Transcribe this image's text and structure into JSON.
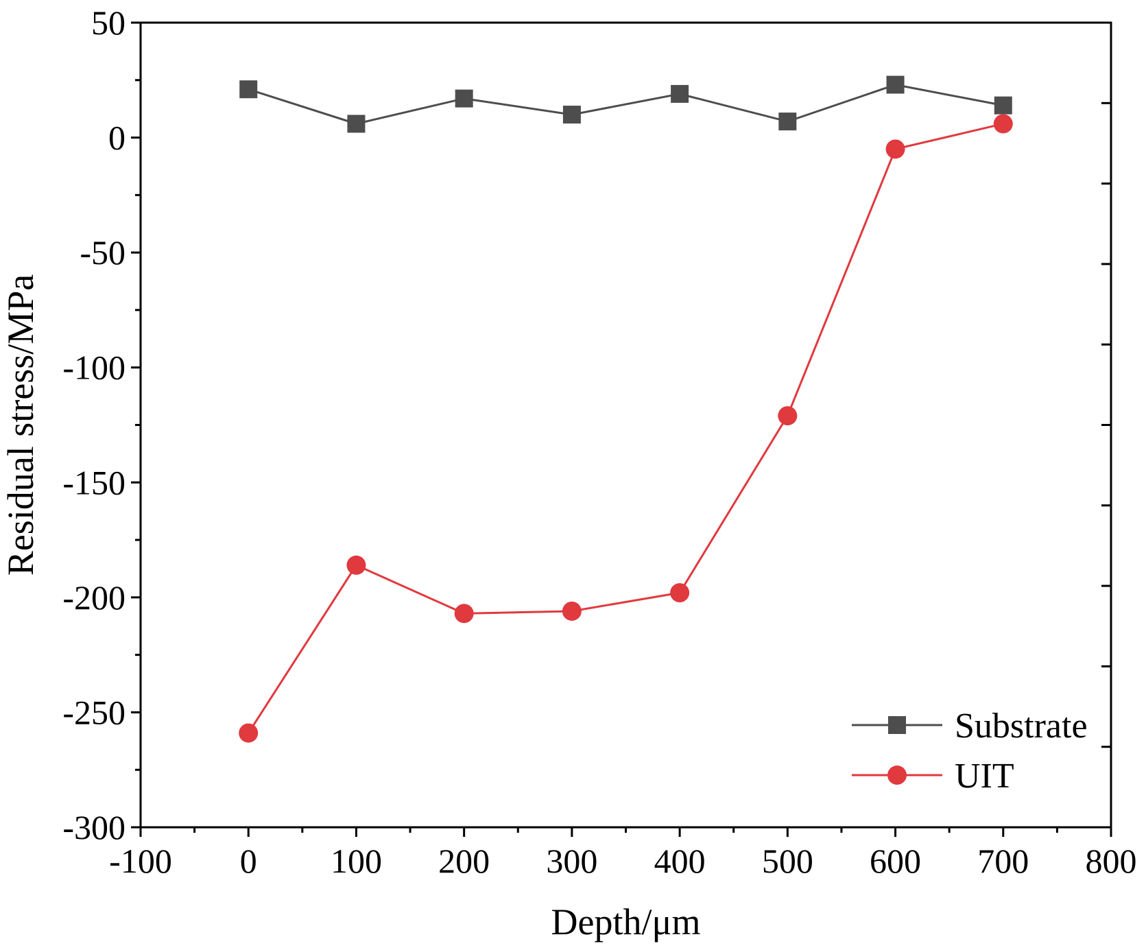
{
  "chart_data": {
    "type": "line",
    "title": "",
    "xlabel": "Depth/μm",
    "ylabel": "Residual stress/MPa",
    "xlim": [
      -100,
      800
    ],
    "ylim": [
      -300,
      50
    ],
    "xticks": [
      -100,
      0,
      100,
      200,
      300,
      400,
      500,
      600,
      700,
      800
    ],
    "yticks": [
      50,
      0,
      -50,
      -100,
      -150,
      -200,
      -250,
      -300
    ],
    "x_tick_labels": [
      "-100",
      "0",
      "100",
      "200",
      "300",
      "400",
      "500",
      "600",
      "700",
      "800"
    ],
    "y_tick_labels": [
      "50",
      "0",
      "-50",
      "-100",
      "-150",
      "-200",
      "-250",
      "-300"
    ],
    "grid": false,
    "legend_position": "bottom-right",
    "x": [
      0,
      100,
      200,
      300,
      400,
      500,
      600,
      700
    ],
    "series": [
      {
        "name": "Substrate",
        "marker": "square",
        "color": "#4d4d4d",
        "values": [
          21,
          6,
          17,
          10,
          19,
          7,
          23,
          14
        ]
      },
      {
        "name": "UIT",
        "marker": "circle",
        "color": "#e0393e",
        "values": [
          -259,
          -186,
          -207,
          -206,
          -198,
          -121,
          -5,
          6
        ]
      }
    ]
  }
}
